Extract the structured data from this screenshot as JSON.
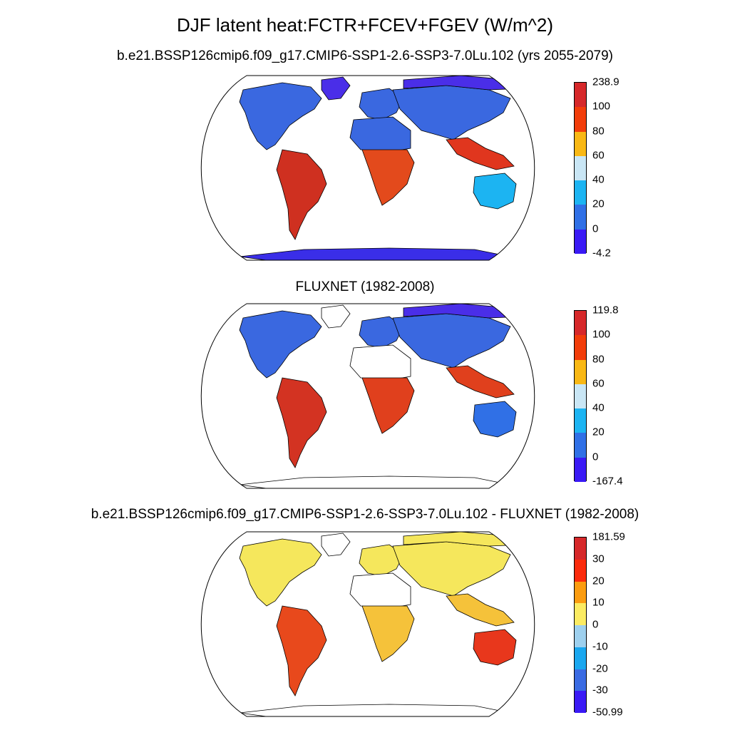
{
  "title": "DJF latent heat:FCTR+FCEV+FGEV (W/m^2)",
  "panels": [
    {
      "id": "model",
      "subtitle": "b.e21.BSSP126cmip6.f09_g17.CMIP6-SSP1-2.6-SSP3-7.0Lu.102 (yrs 2055-2079)",
      "colorbar": {
        "labels": [
          "238.9",
          "100",
          "80",
          "60",
          "40",
          "20",
          "0",
          "-4.2"
        ],
        "colors": [
          "#d6282a",
          "#f23d0a",
          "#f9b815",
          "#c9e6f5",
          "#1cb4f2",
          "#3070e6",
          "#3a1af5"
        ]
      },
      "regions": {
        "north_america": "#3a68e0",
        "greenland": "#4a2ee8",
        "south_america": "#cf3020",
        "europe": "#3a68e0",
        "africa_north": "#3a68e0",
        "africa_south": "#e34a1c",
        "asia": "#3a68e0",
        "siberia": "#4a2ee8",
        "se_asia": "#e0361e",
        "australia": "#1cb4f2",
        "antarctica": "#3a2ee8"
      }
    },
    {
      "id": "obs",
      "subtitle": "FLUXNET (1982-2008)",
      "colorbar": {
        "labels": [
          "119.8",
          "100",
          "80",
          "60",
          "40",
          "20",
          "0",
          "-167.4"
        ],
        "colors": [
          "#d6282a",
          "#f23d0a",
          "#f9b815",
          "#c9e6f5",
          "#1cb4f2",
          "#3070e6",
          "#3a1af5"
        ]
      },
      "regions": {
        "north_america": "#3a68e0",
        "greenland": "#ffffff",
        "south_america": "#d33322",
        "europe": "#3a68e0",
        "africa_north": "#ffffff",
        "africa_south": "#e0401d",
        "asia": "#3a68e0",
        "siberia": "#4a2ee8",
        "se_asia": "#e0401d",
        "australia": "#3070e6",
        "antarctica": "#ffffff"
      }
    },
    {
      "id": "diff",
      "subtitle": "b.e21.BSSP126cmip6.f09_g17.CMIP6-SSP1-2.6-SSP3-7.0Lu.102 - FLUXNET (1982-2008)",
      "colorbar": {
        "labels": [
          "181.59",
          "30",
          "20",
          "10",
          "0",
          "-10",
          "-20",
          "-30",
          "-50.99"
        ],
        "colors": [
          "#d6282a",
          "#fb2b0c",
          "#fb9c10",
          "#fbeb62",
          "#9ed0ee",
          "#1aa7ef",
          "#3a6be3",
          "#3a1af5"
        ]
      },
      "regions": {
        "north_america": "#f5e75c",
        "greenland": "#ffffff",
        "south_america": "#e8491c",
        "europe": "#f5e75c",
        "africa_north": "#ffffff",
        "africa_south": "#f5c23a",
        "asia": "#f5e75c",
        "siberia": "#f5e75c",
        "se_asia": "#f5c23a",
        "australia": "#e8371c",
        "antarctica": "#ffffff"
      }
    }
  ]
}
